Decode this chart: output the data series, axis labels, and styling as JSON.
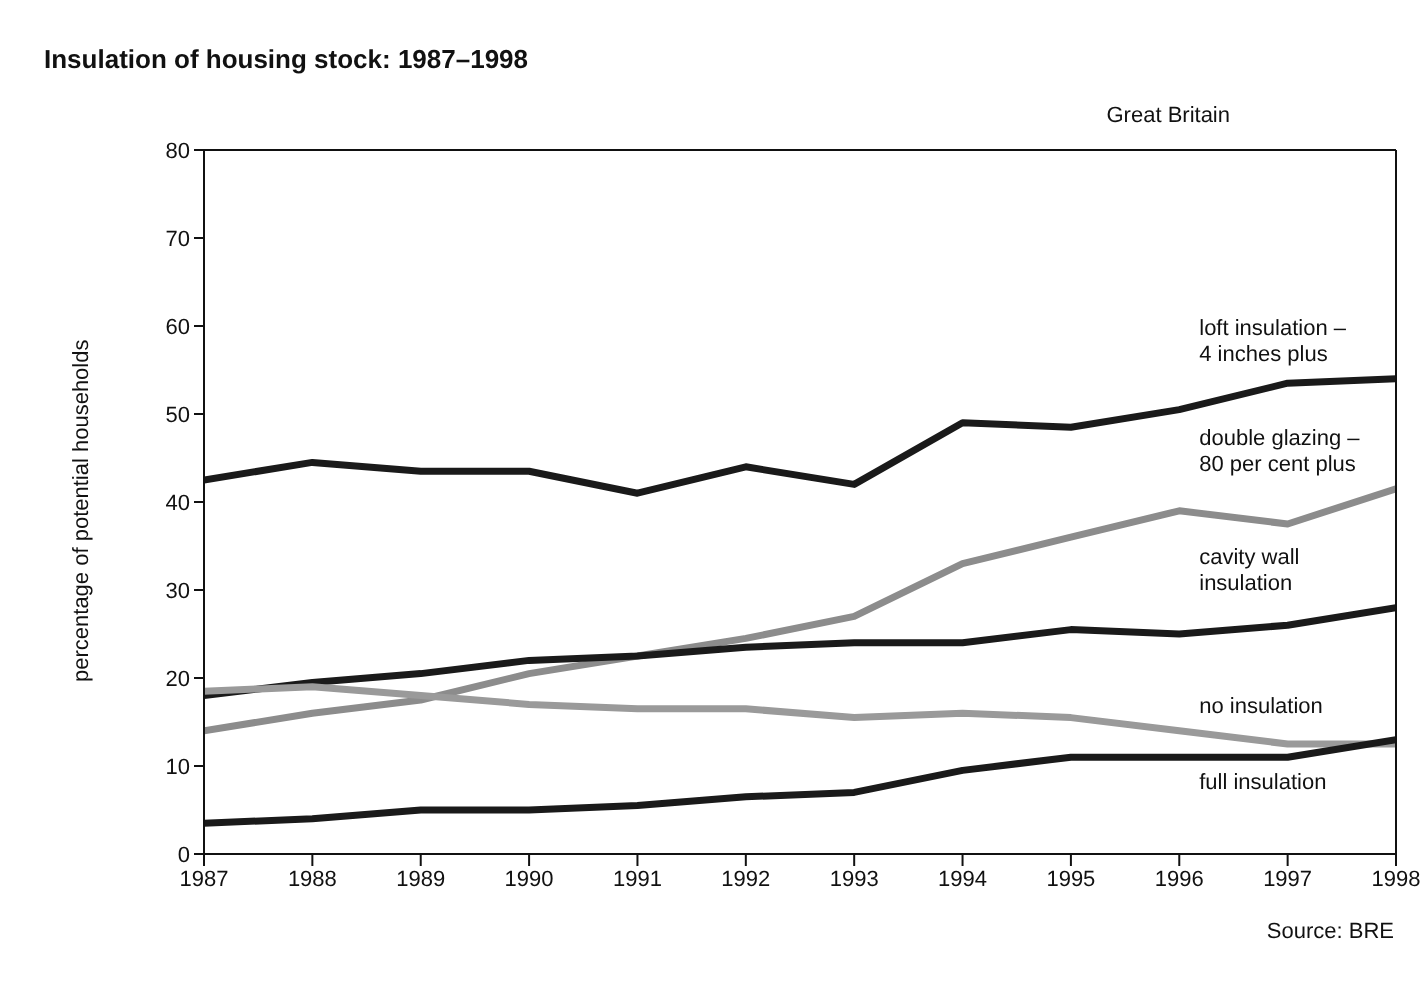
{
  "chart_data": {
    "type": "line",
    "title": "Insulation of housing stock: 1987–1998",
    "ylabel": "percentage of potential households",
    "annotations": [
      "Great Britain",
      "Source: BRE"
    ],
    "x": [
      1987,
      1988,
      1989,
      1990,
      1991,
      1992,
      1993,
      1994,
      1995,
      1996,
      1997,
      1998
    ],
    "xlim": [
      1987,
      1998
    ],
    "xticks": [
      1987,
      1988,
      1989,
      1990,
      1991,
      1992,
      1993,
      1994,
      1995,
      1996,
      1997,
      1998
    ],
    "ylim": [
      0,
      80
    ],
    "yticks": [
      0,
      10,
      20,
      30,
      40,
      50,
      60,
      70,
      80
    ],
    "grid": false,
    "legend": false,
    "marker": "none",
    "line_style": "solid",
    "series": [
      {
        "name": "loft insulation – 4 inches plus",
        "color": "#1a1a1a",
        "values": [
          42.5,
          44.5,
          43.5,
          43.5,
          41,
          44,
          42,
          49,
          48.5,
          50.5,
          53.5,
          54
        ]
      },
      {
        "name": "double glazing – 80 per cent plus",
        "color": "#8c8c8c",
        "values": [
          14,
          16,
          17.5,
          20.5,
          22.5,
          24.5,
          27,
          33,
          36,
          39,
          37.5,
          41.5
        ]
      },
      {
        "name": "cavity wall insulation",
        "color": "#1a1a1a",
        "values": [
          18,
          19.5,
          20.5,
          22,
          22.5,
          23.5,
          24,
          24,
          25.5,
          25,
          26,
          28
        ]
      },
      {
        "name": "no insulation",
        "color": "#9a9a9a",
        "values": [
          18.5,
          19,
          18,
          17,
          16.5,
          16.5,
          15.5,
          16,
          15.5,
          14,
          12.5,
          12.5
        ]
      },
      {
        "name": "full insulation",
        "color": "#1a1a1a",
        "values": [
          3.5,
          4,
          5,
          5,
          5.5,
          6.5,
          7,
          9.5,
          11,
          11,
          11,
          13
        ]
      }
    ]
  }
}
